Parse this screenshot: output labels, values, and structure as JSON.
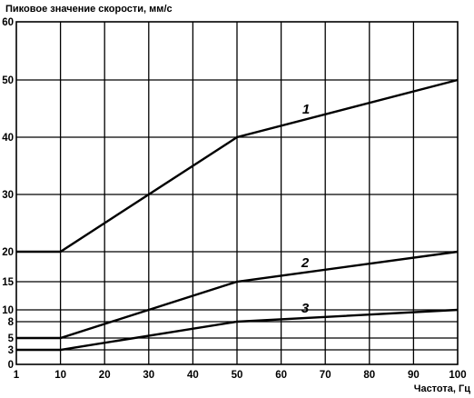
{
  "chart_data": {
    "type": "line",
    "title": "",
    "ylabel": "Пиковое значение скорости, мм/с",
    "xlabel": "Частота, Гц",
    "x_ticks": [
      "1",
      "10",
      "20",
      "30",
      "40",
      "50",
      "60",
      "70",
      "80",
      "90",
      "100"
    ],
    "y_ticks": [
      "0",
      "3",
      "5",
      "8",
      "10",
      "15",
      "20",
      "30",
      "40",
      "50",
      "60"
    ],
    "xlim": [
      1,
      100
    ],
    "ylim": [
      0,
      60
    ],
    "grid": true,
    "series": [
      {
        "name": "1",
        "x": [
          1,
          10,
          50,
          100
        ],
        "y": [
          20,
          20,
          40,
          50
        ]
      },
      {
        "name": "2",
        "x": [
          1,
          10,
          50,
          100
        ],
        "y": [
          5,
          5,
          15,
          20
        ]
      },
      {
        "name": "3",
        "x": [
          1,
          10,
          50,
          100
        ],
        "y": [
          3,
          3,
          8,
          10
        ]
      }
    ],
    "colors": {
      "line": "#000000",
      "grid": "#000000",
      "background": "#ffffff"
    }
  }
}
